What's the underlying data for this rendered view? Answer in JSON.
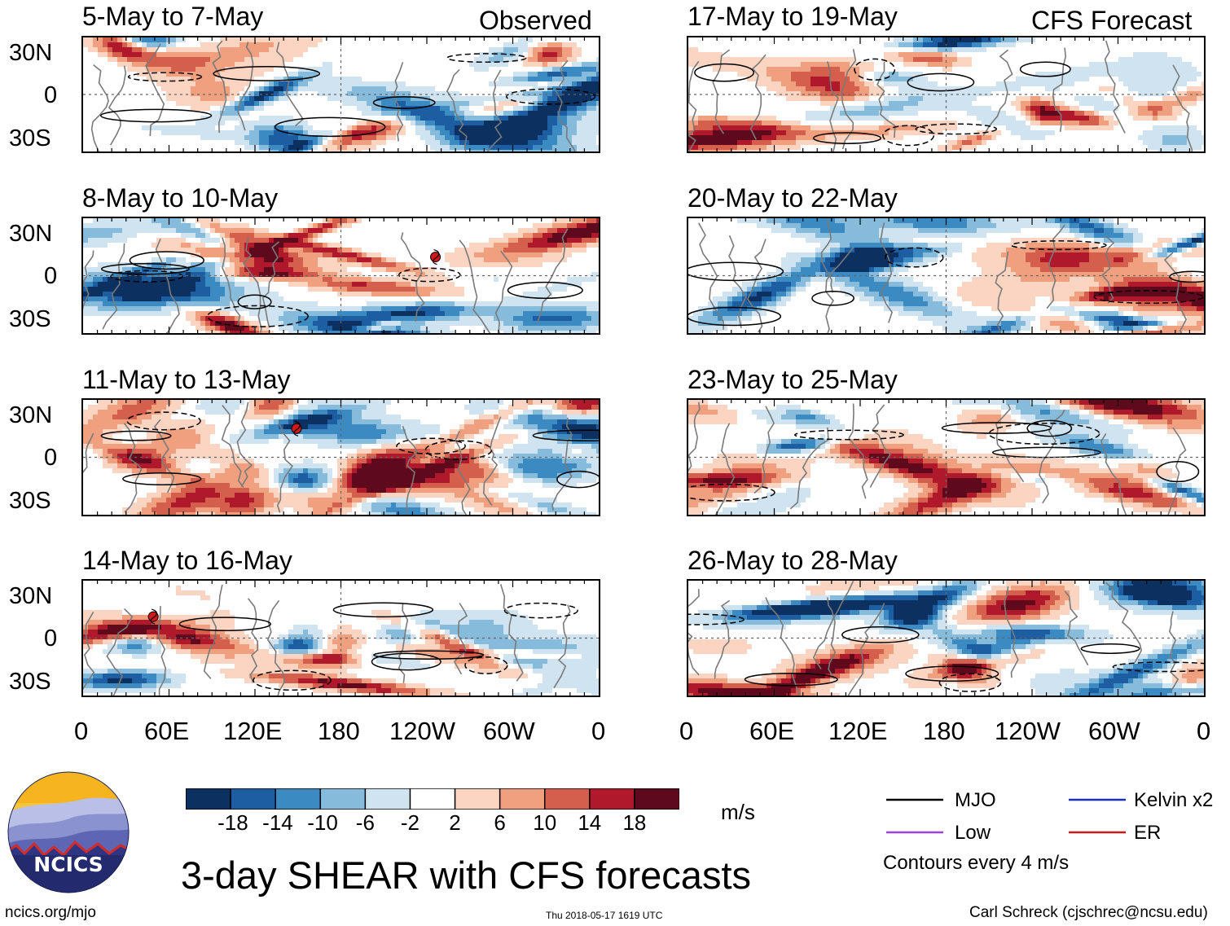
{
  "header": {
    "observed_tag": "Observed",
    "forecast_tag": "CFS Forecast"
  },
  "panels": [
    {
      "title": "5-May to 7-May",
      "group": "observed",
      "col": 0,
      "row": 0,
      "cyclone_lon": null,
      "cyclone_lat": null
    },
    {
      "title": "8-May to 10-May",
      "group": "observed",
      "col": 0,
      "row": 1,
      "cyclone_lon": 246,
      "cyclone_lat": 13
    },
    {
      "title": "11-May to 13-May",
      "group": "observed",
      "col": 0,
      "row": 2,
      "cyclone_lon": 149,
      "cyclone_lat": 20
    },
    {
      "title": "14-May to 16-May",
      "group": "observed",
      "col": 0,
      "row": 3,
      "cyclone_lon": 49,
      "cyclone_lat": 15
    },
    {
      "title": "17-May to 19-May",
      "group": "forecast",
      "col": 1,
      "row": 0,
      "cyclone_lon": null,
      "cyclone_lat": null
    },
    {
      "title": "20-May to 22-May",
      "group": "forecast",
      "col": 1,
      "row": 1,
      "cyclone_lon": null,
      "cyclone_lat": null
    },
    {
      "title": "23-May to 25-May",
      "group": "forecast",
      "col": 1,
      "row": 2,
      "cyclone_lon": null,
      "cyclone_lat": null
    },
    {
      "title": "26-May to 28-May",
      "group": "forecast",
      "col": 1,
      "row": 3,
      "cyclone_lon": null,
      "cyclone_lat": null
    }
  ],
  "lat_ticks": [
    "30N",
    "0",
    "30S"
  ],
  "lon_ticks": [
    "0",
    "60E",
    "120E",
    "180",
    "120W",
    "60W",
    "0"
  ],
  "colorbar": {
    "colors": [
      "#0c3160",
      "#1d5ea3",
      "#3b8bc2",
      "#86bbdb",
      "#cfe4f0",
      "#ffffff",
      "#fbd5c2",
      "#f0a07f",
      "#d45f4c",
      "#b0192b",
      "#5e0a1c"
    ],
    "tick_labels": [
      "-18",
      "-14",
      "-10",
      "-6",
      "-2",
      "2",
      "6",
      "10",
      "14",
      "18"
    ],
    "units": "m/s"
  },
  "legend": {
    "items": [
      {
        "label": "MJO",
        "color": "#000000"
      },
      {
        "label": "Kelvin x2",
        "color": "#1c2fc4"
      },
      {
        "label": "Low",
        "color": "#a040e0"
      },
      {
        "label": "ER",
        "color": "#d01818"
      }
    ],
    "contour_note": "Contours every 4 m/s"
  },
  "footer": {
    "main_title": "3-day SHEAR with CFS forecasts",
    "website": "ncics.org/mjo",
    "timestamp": "Thu 2018-05-17 1619 UTC",
    "author": "Carl Schreck (cjschrec@ncsu.edu)",
    "logo_text": "NCICS"
  }
}
